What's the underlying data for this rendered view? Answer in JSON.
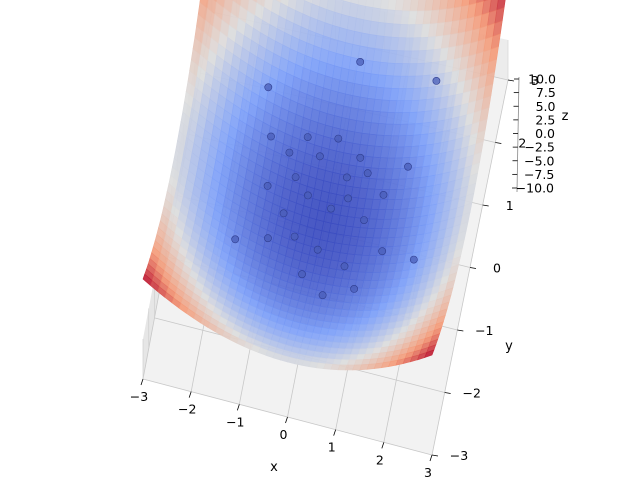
{
  "chart_data": {
    "type": "surface3d",
    "function": "z = x^2 + y^2 - 8 (paraboloid)",
    "colormap": "coolwarm",
    "xlabel": "x",
    "ylabel": "y",
    "zlabel": "z",
    "xlim": [
      -3,
      3
    ],
    "ylim": [
      -3,
      3
    ],
    "zlim": [
      -10,
      10
    ],
    "xticks": [
      "−3",
      "−2",
      "−1",
      "0",
      "1",
      "2",
      "3"
    ],
    "yticks": [
      "−3",
      "−2",
      "−1",
      "0",
      "1",
      "2",
      "3"
    ],
    "zticks": [
      "−10.0",
      "−7.5",
      "−5.0",
      "−2.5",
      "0.0",
      "2.5",
      "5.0",
      "7.5",
      "10.0"
    ],
    "grid": true,
    "scatter_points": [
      {
        "x": -0.9,
        "y": 0.8
      },
      {
        "x": -0.6,
        "y": 1.1
      },
      {
        "x": -0.3,
        "y": 0.9
      },
      {
        "x": 0.0,
        "y": 1.2
      },
      {
        "x": 0.3,
        "y": 0.7
      },
      {
        "x": 0.5,
        "y": 1.0
      },
      {
        "x": -1.2,
        "y": 0.2
      },
      {
        "x": -0.8,
        "y": -0.1
      },
      {
        "x": -0.4,
        "y": 0.3
      },
      {
        "x": 0.1,
        "y": 0.2
      },
      {
        "x": 0.4,
        "y": 0.4
      },
      {
        "x": 0.8,
        "y": 0.1
      },
      {
        "x": 1.1,
        "y": 0.5
      },
      {
        "x": -1.0,
        "y": -0.6
      },
      {
        "x": -0.5,
        "y": -0.4
      },
      {
        "x": 0.0,
        "y": -0.5
      },
      {
        "x": 0.6,
        "y": -0.7
      },
      {
        "x": 1.3,
        "y": -0.4
      },
      {
        "x": -0.2,
        "y": -1.0
      },
      {
        "x": 0.3,
        "y": -1.3
      },
      {
        "x": 1.5,
        "y": 0.9
      },
      {
        "x": 0.2,
        "y": 2.2
      },
      {
        "x": -1.5,
        "y": 1.5
      },
      {
        "x": 1.8,
        "y": 2.0
      },
      {
        "x": 2.0,
        "y": -0.6
      },
      {
        "x": -1.6,
        "y": -0.9
      },
      {
        "x": 0.9,
        "y": -1.1
      },
      {
        "x": -0.7,
        "y": 0.5
      },
      {
        "x": 0.7,
        "y": 0.8
      },
      {
        "x": -1.3,
        "y": 0.9
      }
    ]
  }
}
